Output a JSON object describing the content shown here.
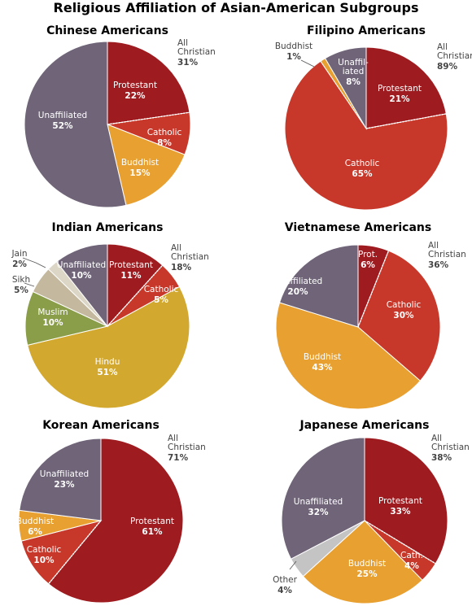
{
  "title": "Religious Affiliation of Asian-American Subgroups",
  "colors": {
    "protestant": "#9e1b20",
    "catholic": "#c8382a",
    "buddhist": "#e8a030",
    "unaffiliated": "#6f6478",
    "hindu": "#d3a82f",
    "muslim": "#8a9d48",
    "sikh": "#c4b99e",
    "jain": "#dcd6c6",
    "other": "#c4c4c4"
  },
  "chart_data": [
    {
      "type": "pie",
      "title": "Chinese Americans",
      "slices": [
        {
          "key": "protestant",
          "name": "Protestant",
          "value": 22
        },
        {
          "key": "catholic",
          "name": "Catholic",
          "value": 8
        },
        {
          "key": "buddhist",
          "name": "Buddhist",
          "value": 15
        },
        {
          "key": "unaffiliated",
          "name": "Unaffiliated",
          "value": 52
        }
      ],
      "all_christian": {
        "label": "All Christian",
        "value": "31%"
      }
    },
    {
      "type": "pie",
      "title": "Filipino  Americans",
      "slices": [
        {
          "key": "protestant",
          "name": "Protestant",
          "value": 21
        },
        {
          "key": "catholic",
          "name": "Catholic",
          "value": 65
        },
        {
          "key": "buddhist",
          "name": "Buddhist",
          "value": 1
        },
        {
          "key": "unaffiliated",
          "name": "Unaffil-iated",
          "value": 8
        }
      ],
      "all_christian": {
        "label": "All Christian",
        "value": "89%"
      }
    },
    {
      "type": "pie",
      "title": "Indian Americans",
      "slices": [
        {
          "key": "protestant",
          "name": "Protestant",
          "value": 11
        },
        {
          "key": "catholic",
          "name": "Catholic",
          "value": 5
        },
        {
          "key": "hindu",
          "name": "Hindu",
          "value": 51
        },
        {
          "key": "muslim",
          "name": "Muslim",
          "value": 10
        },
        {
          "key": "sikh",
          "name": "Sikh",
          "value": 5
        },
        {
          "key": "jain",
          "name": "Jain",
          "value": 2
        },
        {
          "key": "unaffiliated",
          "name": "Unaffiliated",
          "value": 10
        }
      ],
      "all_christian": {
        "label": "All Christian",
        "value": "18%"
      }
    },
    {
      "type": "pie",
      "title": "Vietnamese Americans",
      "slices": [
        {
          "key": "protestant",
          "name": "Prot.",
          "value": 6
        },
        {
          "key": "catholic",
          "name": "Catholic",
          "value": 30
        },
        {
          "key": "buddhist",
          "name": "Buddhist",
          "value": 43
        },
        {
          "key": "unaffiliated",
          "name": "Unaffiliated",
          "value": 20
        }
      ],
      "all_christian": {
        "label": "All Christian",
        "value": "36%"
      }
    },
    {
      "type": "pie",
      "title": "Korean Americans",
      "slices": [
        {
          "key": "protestant",
          "name": "Protestant",
          "value": 61
        },
        {
          "key": "catholic",
          "name": "Catholic",
          "value": 10
        },
        {
          "key": "buddhist",
          "name": "Buddhist",
          "value": 6
        },
        {
          "key": "unaffiliated",
          "name": "Unaffiliated",
          "value": 23
        }
      ],
      "all_christian": {
        "label": "All Christian",
        "value": "71%"
      }
    },
    {
      "type": "pie",
      "title": "Japanese Americans",
      "slices": [
        {
          "key": "protestant",
          "name": "Protestant",
          "value": 33
        },
        {
          "key": "catholic",
          "name": "Cath.",
          "value": 4
        },
        {
          "key": "buddhist",
          "name": "Buddhist",
          "value": 25
        },
        {
          "key": "other",
          "name": "Other",
          "value": 4
        },
        {
          "key": "unaffiliated",
          "name": "Unaffiliated",
          "value": 32
        }
      ],
      "all_christian": {
        "label": "All Christian",
        "value": "38%"
      }
    }
  ]
}
